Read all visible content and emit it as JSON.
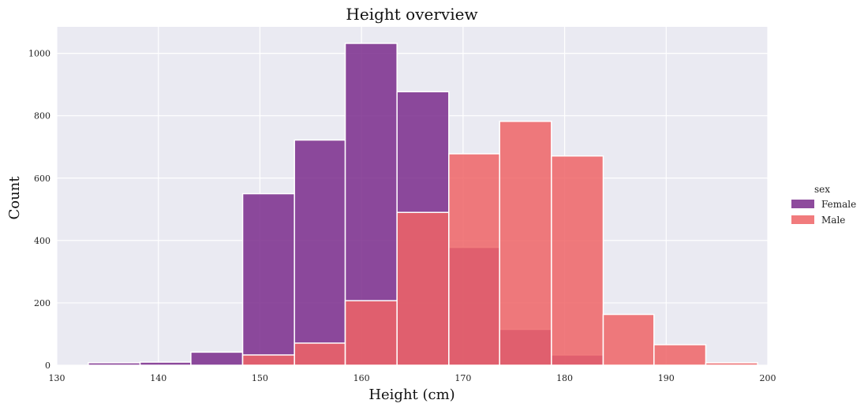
{
  "chart_data": {
    "type": "bar",
    "title": "Height overview",
    "xlabel": "Height (cm)",
    "ylabel": "Count",
    "xlim": [
      130,
      200
    ],
    "ylim": [
      0,
      1085
    ],
    "grid": true,
    "legend": {
      "title": "sex",
      "placement": "right"
    },
    "x_ticks": [
      130,
      140,
      150,
      160,
      170,
      180,
      190,
      200
    ],
    "y_ticks": [
      0,
      200,
      400,
      600,
      800,
      1000
    ],
    "bin_edges": [
      133.1,
      138.2,
      143.2,
      148.3,
      153.4,
      158.4,
      163.5,
      168.6,
      173.6,
      178.7,
      183.8,
      188.8,
      193.9,
      199.0
    ],
    "series": [
      {
        "name": "Female",
        "color": "#7a2b8c",
        "values": [
          8,
          10,
          42,
          550,
          722,
          1032,
          877,
          378,
          115,
          33,
          3,
          3,
          0
        ]
      },
      {
        "name": "Male",
        "color": "#ee6466",
        "values": [
          0,
          0,
          0,
          33,
          71,
          207,
          490,
          678,
          782,
          671,
          163,
          66,
          8
        ]
      }
    ]
  }
}
